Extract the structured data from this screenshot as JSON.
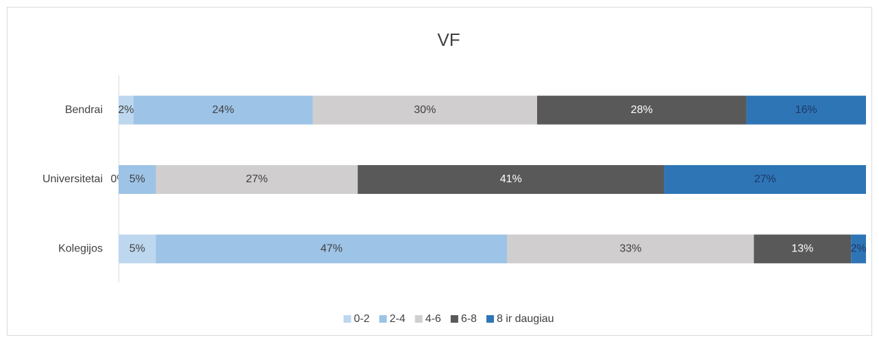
{
  "chart_data": {
    "type": "stacked_barh",
    "title": "VF",
    "categories": [
      "Bendrai",
      "Universitetai",
      "Kolegijos"
    ],
    "xlim": [
      0,
      100
    ],
    "series": [
      {
        "name": "0-2",
        "color": "#bdd7ee",
        "label_color": "#404040",
        "values": [
          2,
          0,
          5
        ],
        "value_labels": [
          "2%",
          "0%",
          "5%"
        ]
      },
      {
        "name": "2-4",
        "color": "#9dc3e6",
        "label_color": "#404040",
        "values": [
          24,
          5,
          47
        ],
        "value_labels": [
          "24%",
          "5%",
          "47%"
        ]
      },
      {
        "name": "4-6",
        "color": "#d0cece",
        "label_color": "#404040",
        "values": [
          30,
          27,
          33
        ],
        "value_labels": [
          "30%",
          "27%",
          "33%"
        ]
      },
      {
        "name": "6-8",
        "color": "#595959",
        "label_color": "#ffffff",
        "values": [
          28,
          41,
          13
        ],
        "value_labels": [
          "28%",
          "41%",
          "13%"
        ]
      },
      {
        "name": "8 ir daugiau",
        "color": "#2e75b6",
        "label_color": "#1f3864",
        "values": [
          16,
          27,
          2
        ],
        "value_labels": [
          "16%",
          "27%",
          "2%"
        ]
      }
    ],
    "legend": "bottom"
  }
}
